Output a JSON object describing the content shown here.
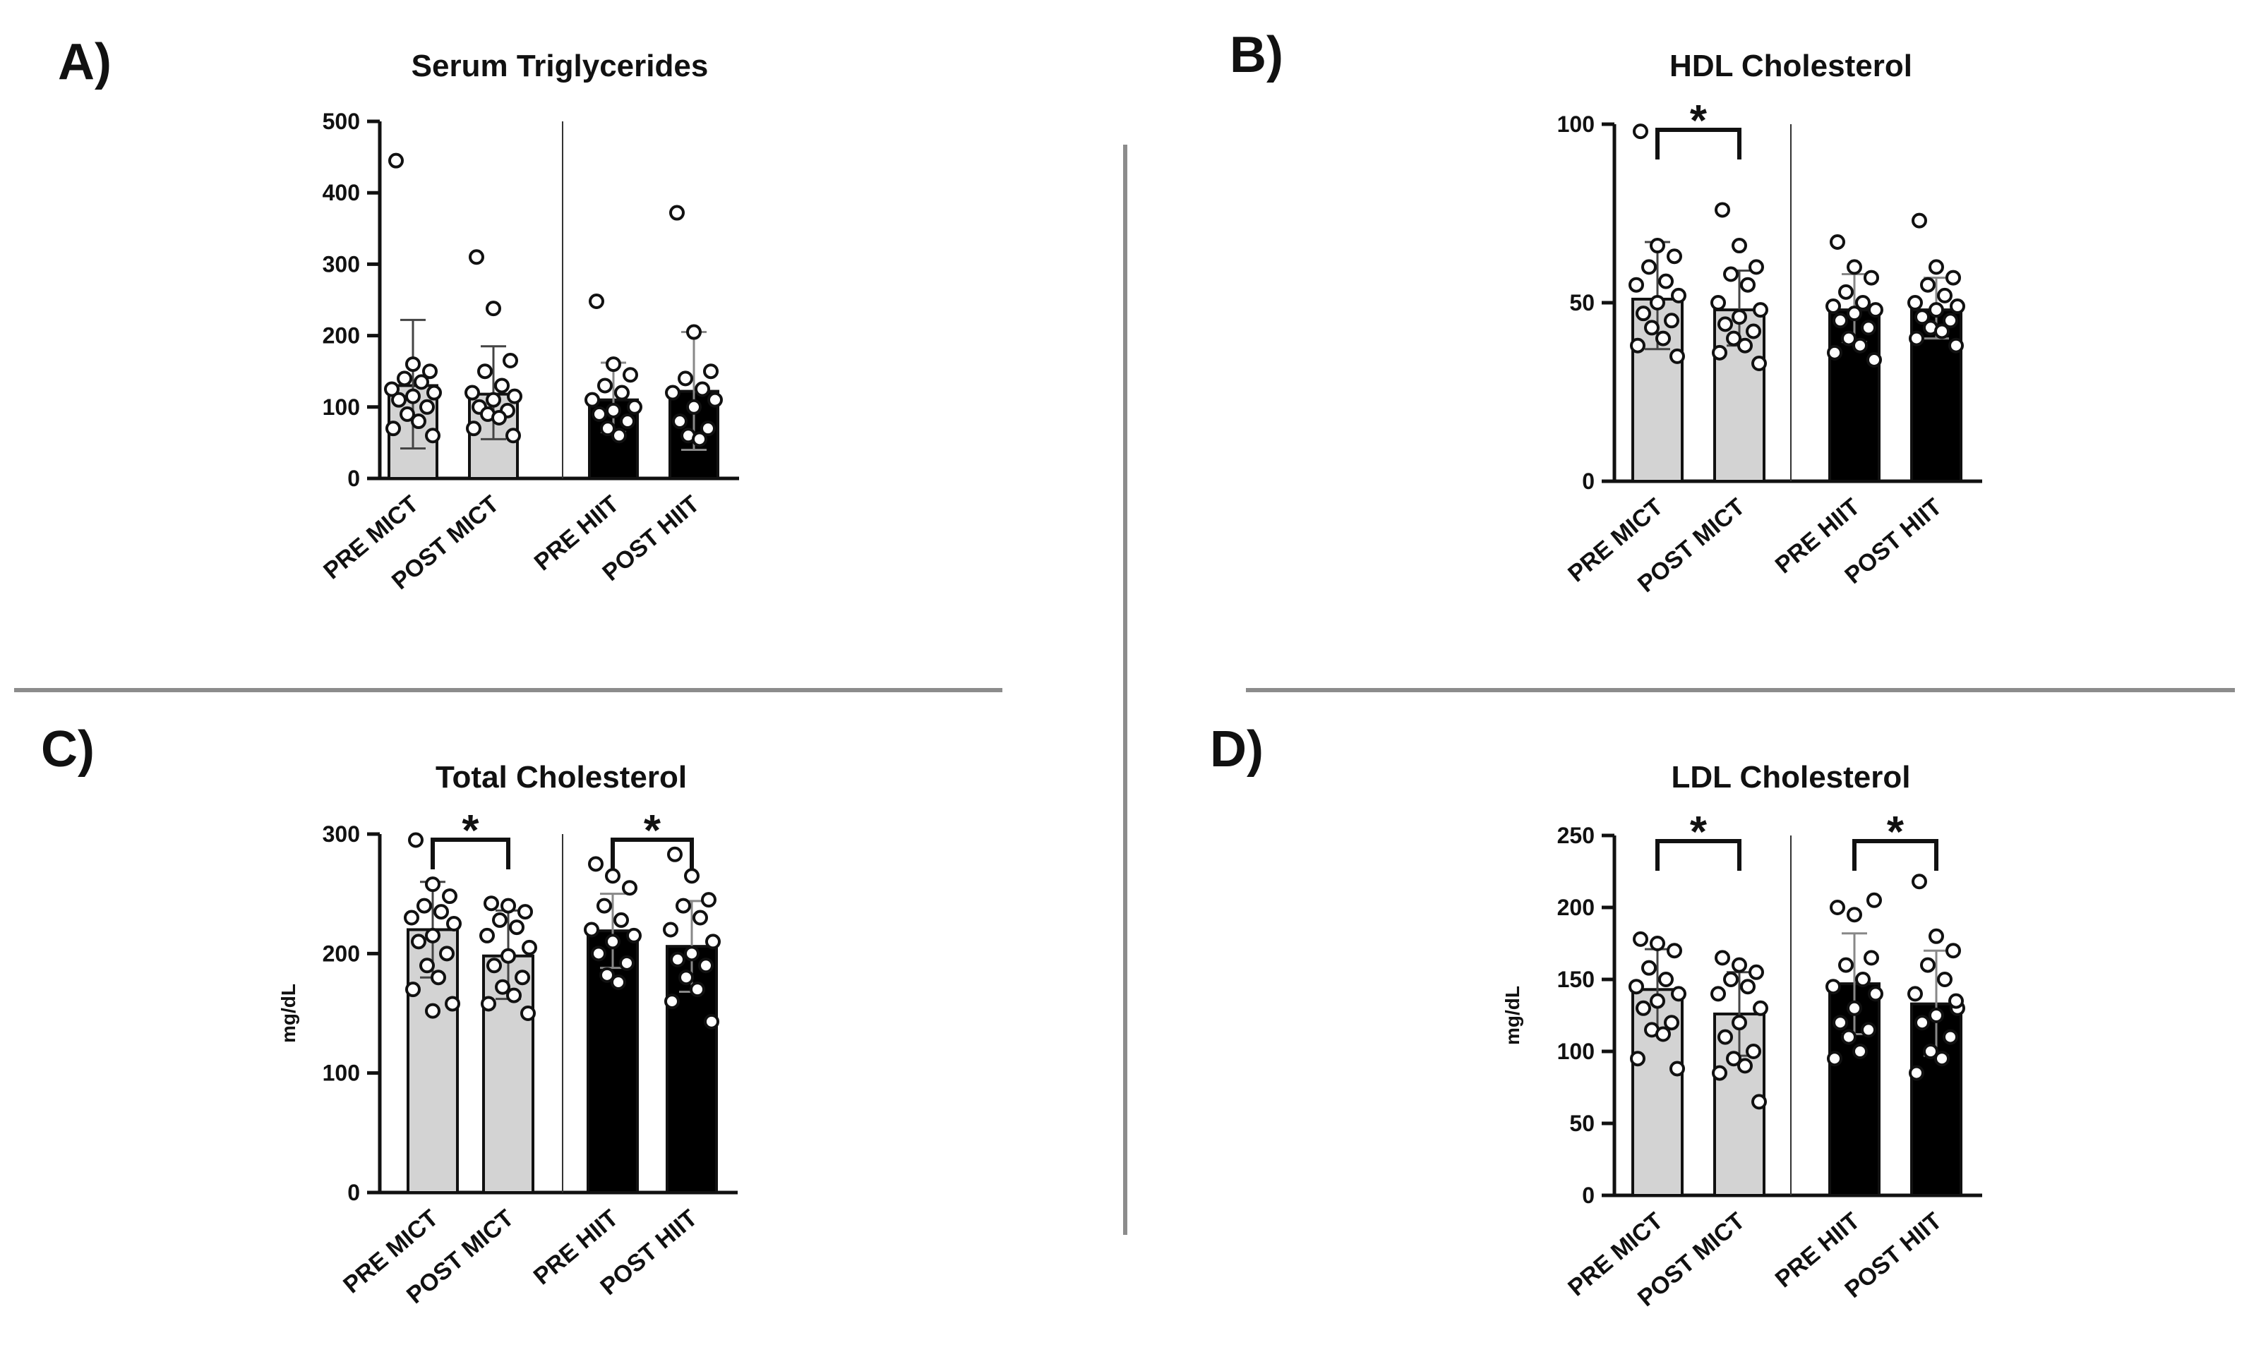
{
  "figure": {
    "background": "#ffffff",
    "divider_color": "#8c8c8c"
  },
  "chart_data": [
    {
      "panel": "A)",
      "type": "bar",
      "title": "Serum Triglycerides",
      "ylabel": "",
      "ylim": [
        0,
        500
      ],
      "yticks": [
        0,
        100,
        200,
        300,
        400,
        500
      ],
      "categories": [
        "PRE MICT",
        "POST MICT",
        "PRE HIIT",
        "POST HIIT"
      ],
      "bar_colors": [
        "#d3d3d3",
        "#d3d3d3",
        "#000000",
        "#000000"
      ],
      "values": [
        130,
        118,
        110,
        122
      ],
      "error_low": [
        42,
        55,
        65,
        40
      ],
      "error_high": [
        222,
        185,
        162,
        205
      ],
      "points": [
        [
          445,
          160,
          150,
          140,
          135,
          125,
          120,
          115,
          110,
          100,
          90,
          80,
          70,
          60
        ],
        [
          310,
          238,
          165,
          150,
          130,
          120,
          115,
          110,
          100,
          95,
          90,
          85,
          70,
          60
        ],
        [
          248,
          160,
          145,
          130,
          120,
          110,
          100,
          95,
          90,
          80,
          70,
          60
        ],
        [
          372,
          205,
          150,
          140,
          125,
          120,
          110,
          100,
          80,
          70,
          60,
          55
        ]
      ],
      "significance": []
    },
    {
      "panel": "B)",
      "type": "bar",
      "title": "HDL Cholesterol",
      "ylabel": "",
      "ylim": [
        0,
        100
      ],
      "yticks": [
        0,
        50,
        100
      ],
      "categories": [
        "PRE MICT",
        "POST MICT",
        "PRE HIIT",
        "POST HIIT"
      ],
      "bar_colors": [
        "#d3d3d3",
        "#d3d3d3",
        "#000000",
        "#000000"
      ],
      "values": [
        51,
        48,
        48,
        48
      ],
      "error_low": [
        37,
        38,
        39,
        40
      ],
      "error_high": [
        67,
        59,
        58,
        57
      ],
      "points": [
        [
          98,
          66,
          63,
          60,
          56,
          55,
          52,
          50,
          47,
          45,
          43,
          40,
          38,
          35
        ],
        [
          76,
          66,
          60,
          58,
          55,
          50,
          48,
          46,
          44,
          42,
          40,
          38,
          36,
          33
        ],
        [
          67,
          60,
          57,
          53,
          50,
          49,
          48,
          47,
          45,
          43,
          40,
          38,
          36,
          34
        ],
        [
          73,
          60,
          57,
          55,
          52,
          50,
          49,
          48,
          46,
          45,
          43,
          42,
          40,
          38
        ]
      ],
      "significance": [
        {
          "from": 0,
          "to": 1,
          "label": "*"
        }
      ]
    },
    {
      "panel": "C)",
      "type": "bar",
      "title": "Total Cholesterol",
      "ylabel": "mg/dL",
      "ylim": [
        0,
        300
      ],
      "yticks": [
        0,
        100,
        200,
        300
      ],
      "categories": [
        "PRE MICT",
        "POST MICT",
        "PRE HIIT",
        "POST HIIT"
      ],
      "bar_colors": [
        "#d3d3d3",
        "#d3d3d3",
        "#000000",
        "#000000"
      ],
      "values": [
        220,
        198,
        219,
        206
      ],
      "error_low": [
        180,
        162,
        188,
        168
      ],
      "error_high": [
        260,
        236,
        250,
        244
      ],
      "points": [
        [
          295,
          258,
          248,
          240,
          235,
          230,
          225,
          215,
          210,
          200,
          190,
          180,
          170,
          158,
          152
        ],
        [
          242,
          240,
          235,
          228,
          222,
          215,
          205,
          198,
          190,
          180,
          172,
          165,
          158,
          150
        ],
        [
          275,
          265,
          255,
          240,
          228,
          220,
          215,
          210,
          200,
          192,
          182,
          176
        ],
        [
          283,
          265,
          245,
          240,
          230,
          220,
          210,
          200,
          195,
          190,
          180,
          170,
          160,
          143
        ]
      ],
      "significance": [
        {
          "from": 0,
          "to": 1,
          "label": "*"
        },
        {
          "from": 2,
          "to": 3,
          "label": "*"
        }
      ]
    },
    {
      "panel": "D)",
      "type": "bar",
      "title": "LDL Cholesterol",
      "ylabel": "mg/dL",
      "ylim": [
        0,
        250
      ],
      "yticks": [
        0,
        50,
        100,
        150,
        200,
        250
      ],
      "categories": [
        "PRE MICT",
        "POST MICT",
        "PRE HIIT",
        "POST HIIT"
      ],
      "bar_colors": [
        "#d3d3d3",
        "#d3d3d3",
        "#000000",
        "#000000"
      ],
      "values": [
        143,
        126,
        147,
        133
      ],
      "error_low": [
        115,
        97,
        112,
        97
      ],
      "error_high": [
        171,
        155,
        182,
        170
      ],
      "points": [
        [
          178,
          175,
          170,
          158,
          150,
          145,
          140,
          135,
          130,
          120,
          115,
          112,
          95,
          88
        ],
        [
          165,
          160,
          155,
          150,
          145,
          140,
          130,
          120,
          110,
          100,
          95,
          90,
          85,
          65
        ],
        [
          200,
          195,
          165,
          160,
          150,
          145,
          140,
          130,
          120,
          115,
          110,
          100,
          95,
          205
        ],
        [
          218,
          180,
          170,
          160,
          150,
          140,
          130,
          125,
          120,
          110,
          100,
          95,
          85,
          135
        ]
      ],
      "significance": [
        {
          "from": 0,
          "to": 1,
          "label": "*"
        },
        {
          "from": 2,
          "to": 3,
          "label": "*"
        }
      ]
    }
  ]
}
